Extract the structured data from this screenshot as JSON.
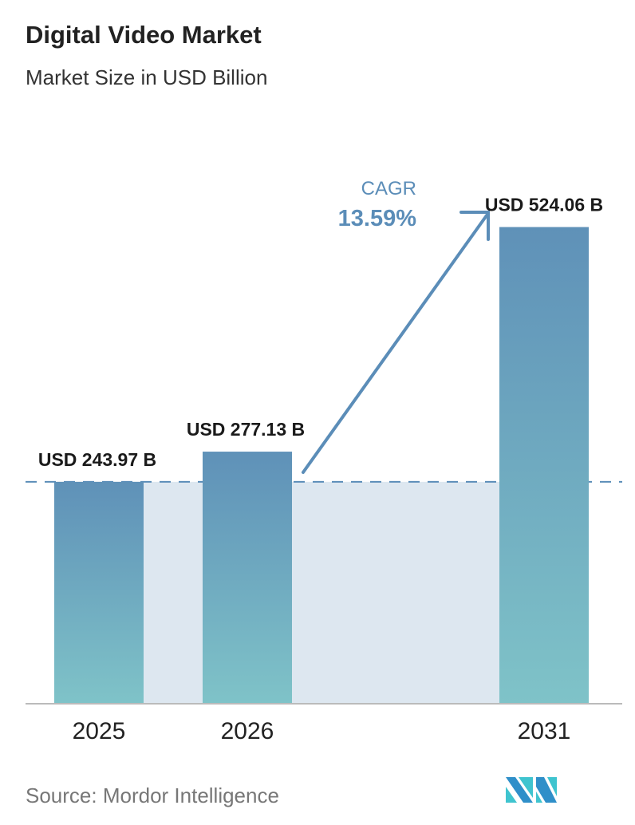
{
  "title": "Digital Video Market",
  "subtitle": "Market Size in USD Billion",
  "source": "Source:  Mordor Intelligence",
  "logo_text": "MN",
  "cagr": {
    "label": "CAGR",
    "value": "13.59%"
  },
  "colors": {
    "bar_top": "#5f91b8",
    "bar_bottom": "#7fc3c8",
    "band": "#dde7f0",
    "accent": "#5b8db8"
  },
  "chart_data": {
    "type": "bar",
    "categories": [
      "2025",
      "2026",
      "2031"
    ],
    "values": [
      243.97,
      277.13,
      524.06
    ],
    "data_labels": [
      "USD 243.97 B",
      "USD 277.13 B",
      "USD 524.06 B"
    ],
    "title": "Digital Video Market",
    "subtitle": "Market Size in USD Billion",
    "xlabel": "",
    "ylabel": "",
    "grid": false,
    "ylim": [
      0,
      524.06
    ]
  }
}
